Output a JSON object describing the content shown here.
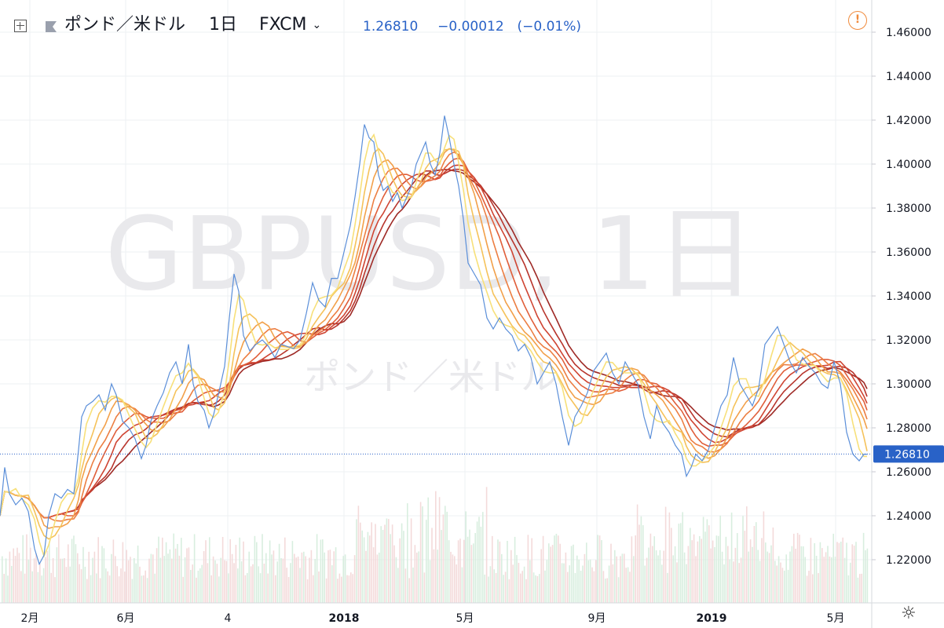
{
  "header": {
    "symbol": "ポンド／米ドル",
    "interval": "1日",
    "exchange": "FXCM",
    "last_price": "1.26810",
    "change": "−0.00012",
    "change_pct": "(−0.01%)",
    "price_color": "#2962c7"
  },
  "watermark": {
    "line1": "GBPUSD, 1日",
    "line2": "ポンド／米ドル"
  },
  "icons": {
    "add": "plus-square-icon",
    "flag": "flag-icon",
    "dropdown": "chevron-down-icon",
    "alert": "alert-icon",
    "settings": "gear-icon"
  },
  "chart_data": {
    "type": "line",
    "title": "GBPUSD, 1日",
    "xlabel": "",
    "ylabel": "",
    "ylim": [
      1.205,
      1.47
    ],
    "y_ticks": [
      1.22,
      1.24,
      1.26,
      1.28,
      1.3,
      1.32,
      1.34,
      1.36,
      1.38,
      1.4,
      1.42,
      1.44,
      1.46
    ],
    "y_tick_labels": [
      "1.22000",
      "1.24000",
      "1.26000",
      "1.28000",
      "1.30000",
      "1.32000",
      "1.34000",
      "1.36000",
      "1.38000",
      "1.40000",
      "1.42000",
      "1.44000",
      "1.46000"
    ],
    "x_tick_labels": [
      "2月",
      "6月",
      "4",
      "2018",
      "5月",
      "9月",
      "2019",
      "5月"
    ],
    "current_price_label": "1.26810",
    "current_price": 1.2681,
    "grid": true,
    "line_color": "#5b8fd9",
    "series": [
      {
        "points": [
          [
            0,
            1.24
          ],
          [
            6,
            1.262
          ],
          [
            12,
            1.25
          ],
          [
            20,
            1.245
          ],
          [
            28,
            1.248
          ],
          [
            36,
            1.242
          ],
          [
            44,
            1.225
          ],
          [
            50,
            1.218
          ],
          [
            56,
            1.222
          ],
          [
            62,
            1.24
          ],
          [
            70,
            1.25
          ],
          [
            78,
            1.248
          ],
          [
            86,
            1.252
          ],
          [
            94,
            1.25
          ],
          [
            100,
            1.27
          ],
          [
            104,
            1.285
          ],
          [
            110,
            1.29
          ],
          [
            118,
            1.292
          ],
          [
            126,
            1.295
          ],
          [
            134,
            1.288
          ],
          [
            142,
            1.3
          ],
          [
            148,
            1.295
          ],
          [
            156,
            1.283
          ],
          [
            164,
            1.28
          ],
          [
            172,
            1.275
          ],
          [
            180,
            1.266
          ],
          [
            186,
            1.272
          ],
          [
            192,
            1.283
          ],
          [
            200,
            1.29
          ],
          [
            208,
            1.296
          ],
          [
            216,
            1.305
          ],
          [
            224,
            1.31
          ],
          [
            232,
            1.3
          ],
          [
            240,
            1.318
          ],
          [
            246,
            1.3
          ],
          [
            252,
            1.292
          ],
          [
            260,
            1.288
          ],
          [
            266,
            1.28
          ],
          [
            272,
            1.286
          ],
          [
            278,
            1.295
          ],
          [
            286,
            1.308
          ],
          [
            292,
            1.33
          ],
          [
            298,
            1.35
          ],
          [
            304,
            1.342
          ],
          [
            310,
            1.322
          ],
          [
            318,
            1.315
          ],
          [
            326,
            1.318
          ],
          [
            334,
            1.32
          ],
          [
            342,
            1.317
          ],
          [
            350,
            1.312
          ],
          [
            358,
            1.318
          ],
          [
            366,
            1.317
          ],
          [
            374,
            1.316
          ],
          [
            382,
            1.32
          ],
          [
            390,
            1.332
          ],
          [
            398,
            1.346
          ],
          [
            406,
            1.338
          ],
          [
            414,
            1.335
          ],
          [
            422,
            1.348
          ],
          [
            430,
            1.348
          ],
          [
            438,
            1.36
          ],
          [
            446,
            1.372
          ],
          [
            452,
            1.385
          ],
          [
            458,
            1.4
          ],
          [
            464,
            1.418
          ],
          [
            470,
            1.412
          ],
          [
            476,
            1.41
          ],
          [
            482,
            1.395
          ],
          [
            488,
            1.388
          ],
          [
            494,
            1.39
          ],
          [
            500,
            1.383
          ],
          [
            506,
            1.387
          ],
          [
            512,
            1.38
          ],
          [
            518,
            1.385
          ],
          [
            524,
            1.39
          ],
          [
            530,
            1.4
          ],
          [
            536,
            1.405
          ],
          [
            542,
            1.41
          ],
          [
            548,
            1.4
          ],
          [
            554,
            1.395
          ],
          [
            560,
            1.405
          ],
          [
            566,
            1.422
          ],
          [
            572,
            1.412
          ],
          [
            578,
            1.4
          ],
          [
            584,
            1.39
          ],
          [
            590,
            1.375
          ],
          [
            596,
            1.355
          ],
          [
            604,
            1.35
          ],
          [
            612,
            1.345
          ],
          [
            620,
            1.33
          ],
          [
            628,
            1.325
          ],
          [
            636,
            1.33
          ],
          [
            644,
            1.325
          ],
          [
            652,
            1.322
          ],
          [
            660,
            1.315
          ],
          [
            668,
            1.318
          ],
          [
            676,
            1.312
          ],
          [
            684,
            1.3
          ],
          [
            692,
            1.305
          ],
          [
            700,
            1.31
          ],
          [
            708,
            1.3
          ],
          [
            716,
            1.285
          ],
          [
            724,
            1.272
          ],
          [
            732,
            1.285
          ],
          [
            740,
            1.29
          ],
          [
            748,
            1.296
          ],
          [
            756,
            1.306
          ],
          [
            764,
            1.31
          ],
          [
            772,
            1.314
          ],
          [
            780,
            1.305
          ],
          [
            788,
            1.3
          ],
          [
            796,
            1.31
          ],
          [
            804,
            1.305
          ],
          [
            812,
            1.3
          ],
          [
            820,
            1.285
          ],
          [
            828,
            1.275
          ],
          [
            836,
            1.29
          ],
          [
            844,
            1.282
          ],
          [
            852,
            1.278
          ],
          [
            860,
            1.272
          ],
          [
            868,
            1.268
          ],
          [
            874,
            1.258
          ],
          [
            880,
            1.262
          ],
          [
            886,
            1.268
          ],
          [
            894,
            1.265
          ],
          [
            902,
            1.27
          ],
          [
            910,
            1.28
          ],
          [
            918,
            1.29
          ],
          [
            926,
            1.295
          ],
          [
            934,
            1.312
          ],
          [
            942,
            1.3
          ],
          [
            950,
            1.295
          ],
          [
            958,
            1.29
          ],
          [
            966,
            1.298
          ],
          [
            974,
            1.318
          ],
          [
            982,
            1.322
          ],
          [
            990,
            1.326
          ],
          [
            998,
            1.318
          ],
          [
            1006,
            1.31
          ],
          [
            1014,
            1.305
          ],
          [
            1022,
            1.312
          ],
          [
            1030,
            1.308
          ],
          [
            1038,
            1.305
          ],
          [
            1046,
            1.3
          ],
          [
            1054,
            1.298
          ],
          [
            1062,
            1.31
          ],
          [
            1070,
            1.3
          ],
          [
            1078,
            1.278
          ],
          [
            1086,
            1.268
          ],
          [
            1094,
            1.265
          ],
          [
            1100,
            1.268
          ],
          [
            1104,
            1.268
          ]
        ]
      }
    ],
    "ribbon": {
      "count": 8,
      "colors": [
        "#f7e07a",
        "#f5c25a",
        "#f2a04a",
        "#ec7e42",
        "#e05e3a",
        "#cf4533",
        "#b8352c",
        "#9e2a26"
      ]
    },
    "volume": true
  }
}
